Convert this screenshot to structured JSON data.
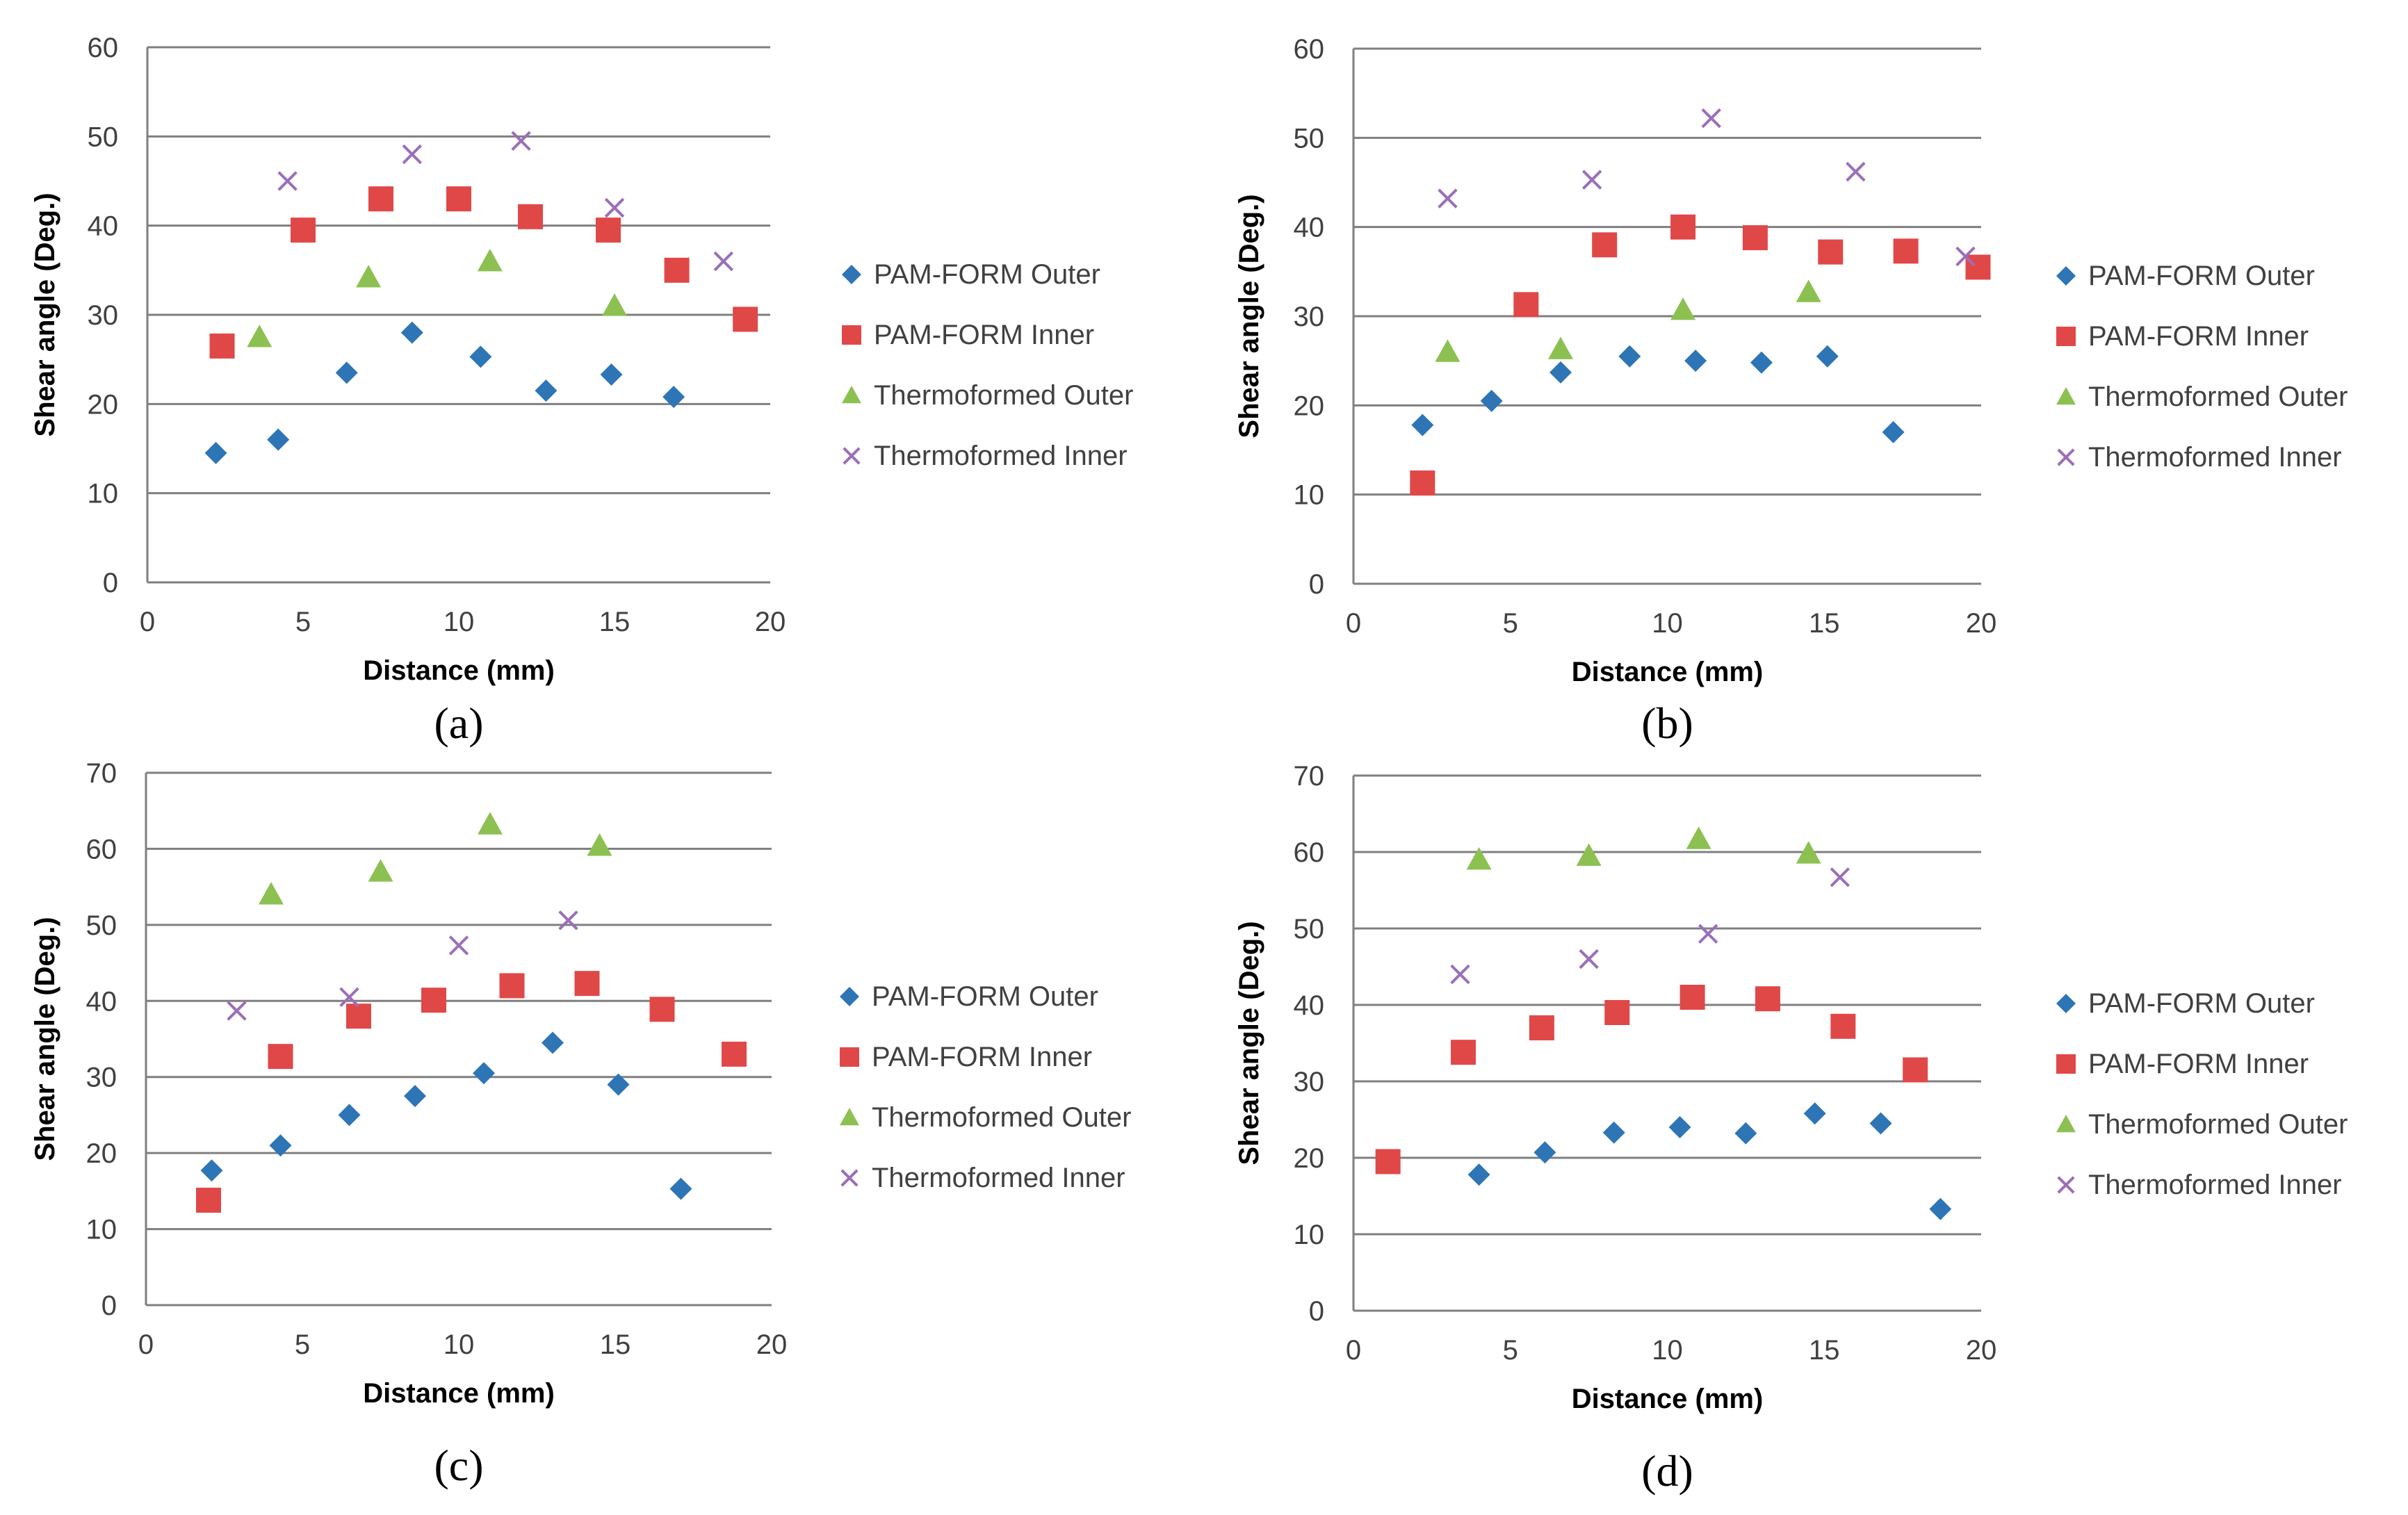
{
  "colors": {
    "PAM-FORM Outer": "#2E75B6",
    "PAM-FORM Inner": "#E04848",
    "Thermoformed Outer": "#8CC152",
    "Thermoformed Inner": "#9B6FB8",
    "grid": "#7F7F7F",
    "axis": "#7F7F7F"
  },
  "legend": [
    {
      "label": "PAM-FORM Outer",
      "marker": "diamond"
    },
    {
      "label": "PAM-FORM Inner",
      "marker": "square"
    },
    {
      "label": "Thermoformed Outer",
      "marker": "triangle"
    },
    {
      "label": "Thermoformed Inner",
      "marker": "x"
    }
  ],
  "chart_data": [
    {
      "panel_label": "(a)",
      "type": "scatter",
      "xlabel": "Distance (mm)",
      "ylabel": "Shear angle (Deg.)",
      "xlim": [
        0,
        20
      ],
      "ylim": [
        0,
        60
      ],
      "xticks": [
        0,
        5,
        10,
        15,
        20
      ],
      "yticks": [
        0,
        10,
        20,
        30,
        40,
        50,
        60
      ],
      "legend_position": "right",
      "series": [
        {
          "name": "PAM-FORM Outer",
          "x": [
            2.2,
            4.2,
            6.4,
            8.5,
            10.7,
            12.8,
            14.9,
            16.9
          ],
          "y": [
            14.5,
            16,
            23.5,
            28,
            25.3,
            21.5,
            23.3,
            20.8
          ]
        },
        {
          "name": "PAM-FORM Inner",
          "x": [
            2.4,
            5,
            7.5,
            10,
            12.3,
            14.8,
            17,
            19.2
          ],
          "y": [
            26.5,
            39.5,
            43,
            43,
            41,
            39.5,
            35,
            29.5
          ]
        },
        {
          "name": "Thermoformed Outer",
          "x": [
            3.6,
            7.1,
            11,
            15
          ],
          "y": [
            27.5,
            34.2,
            36,
            31
          ]
        },
        {
          "name": "Thermoformed Inner",
          "x": [
            4.5,
            8.5,
            12,
            15,
            18.5
          ],
          "y": [
            45,
            48,
            49.5,
            42,
            36
          ]
        }
      ]
    },
    {
      "panel_label": "(b)",
      "type": "scatter",
      "xlabel": "Distance (mm)",
      "ylabel": "Shear angle (Deg.)",
      "xlim": [
        0,
        20
      ],
      "ylim": [
        0,
        60
      ],
      "xticks": [
        0,
        5,
        10,
        15,
        20
      ],
      "yticks": [
        0,
        10,
        20,
        30,
        40,
        50,
        60
      ],
      "legend_position": "right",
      "series": [
        {
          "name": "PAM-FORM Outer",
          "x": [
            2.2,
            4.4,
            6.6,
            8.8,
            10.9,
            13,
            15.1,
            17.2
          ],
          "y": [
            17.8,
            20.5,
            23.7,
            25.5,
            25,
            24.8,
            25.5,
            17
          ]
        },
        {
          "name": "PAM-FORM Inner",
          "x": [
            2.2,
            5.5,
            8,
            10.5,
            12.8,
            15.2,
            17.6,
            19.9
          ],
          "y": [
            11.3,
            31.3,
            38,
            40,
            38.8,
            37.2,
            37.3,
            35.5
          ]
        },
        {
          "name": "Thermoformed Outer",
          "x": [
            3,
            6.6,
            10.5,
            14.5
          ],
          "y": [
            26,
            26.3,
            30.7,
            32.7
          ]
        },
        {
          "name": "Thermoformed Inner",
          "x": [
            3,
            7.6,
            11.4,
            16,
            19.5
          ],
          "y": [
            43.2,
            45.3,
            52.2,
            46.2,
            36.7
          ]
        }
      ]
    },
    {
      "panel_label": "(c)",
      "type": "scatter",
      "xlabel": "Distance (mm)",
      "ylabel": "Shear angle (Deg.)",
      "xlim": [
        0,
        20
      ],
      "ylim": [
        0,
        70
      ],
      "xticks": [
        0,
        5,
        10,
        15,
        20
      ],
      "yticks": [
        0,
        10,
        20,
        30,
        40,
        50,
        60,
        70
      ],
      "legend_position": "right",
      "series": [
        {
          "name": "PAM-FORM Outer",
          "x": [
            2.1,
            4.3,
            6.5,
            8.6,
            10.8,
            13,
            15.1,
            17.1
          ],
          "y": [
            17.7,
            21,
            25,
            27.5,
            30.5,
            34.5,
            29,
            15.3
          ]
        },
        {
          "name": "PAM-FORM Inner",
          "x": [
            2,
            4.3,
            6.8,
            9.2,
            11.7,
            14.1,
            16.5,
            18.8
          ],
          "y": [
            13.8,
            32.7,
            38,
            40.1,
            42,
            42.3,
            38.9,
            33
          ]
        },
        {
          "name": "Thermoformed Outer",
          "x": [
            4,
            7.5,
            11,
            14.5
          ],
          "y": [
            54,
            57,
            63.2,
            60.4
          ]
        },
        {
          "name": "Thermoformed Inner",
          "x": [
            2.9,
            6.5,
            10,
            13.5
          ],
          "y": [
            38.7,
            40.5,
            47.3,
            50.6
          ]
        }
      ]
    },
    {
      "panel_label": "(d)",
      "type": "scatter",
      "xlabel": "Distance (mm)",
      "ylabel": "Shear angle (Deg.)",
      "xlim": [
        0,
        20
      ],
      "ylim": [
        0,
        70
      ],
      "xticks": [
        0,
        5,
        10,
        15,
        20
      ],
      "yticks": [
        0,
        10,
        20,
        30,
        40,
        50,
        60,
        70
      ],
      "legend_position": "right",
      "series": [
        {
          "name": "PAM-FORM Outer",
          "x": [
            4,
            6.1,
            8.3,
            10.4,
            12.5,
            14.7,
            16.8,
            18.7
          ],
          "y": [
            17.8,
            20.7,
            23.3,
            24,
            23.2,
            25.8,
            24.5,
            13.3
          ]
        },
        {
          "name": "PAM-FORM Inner",
          "x": [
            1.1,
            3.5,
            6,
            8.4,
            10.8,
            13.2,
            15.6,
            17.9
          ],
          "y": [
            19.5,
            33.8,
            37,
            39,
            41,
            40.8,
            37.2,
            31.5
          ]
        },
        {
          "name": "Thermoformed Outer",
          "x": [
            4,
            7.5,
            11,
            14.5
          ],
          "y": [
            59,
            59.5,
            61.7,
            59.8
          ]
        },
        {
          "name": "Thermoformed Inner",
          "x": [
            3.4,
            7.5,
            11.3,
            15.5
          ],
          "y": [
            44,
            46,
            49.3,
            56.7
          ]
        }
      ]
    }
  ]
}
